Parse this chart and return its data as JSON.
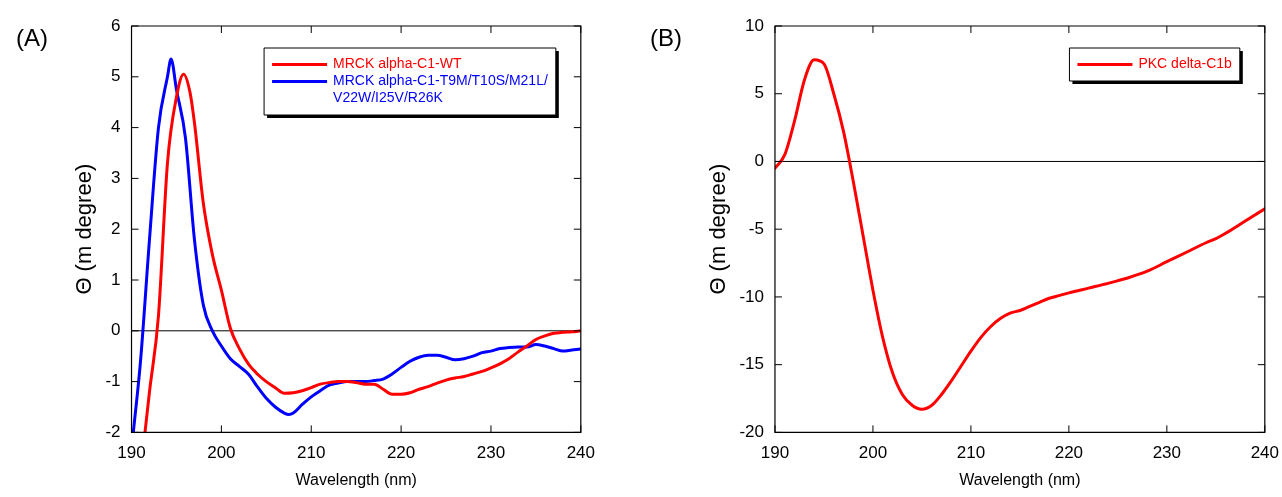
{
  "chart_data": [
    {
      "type": "line",
      "title": "(A)",
      "xlabel": "Wavelength (nm)",
      "ylabel": "Θ (m degree)",
      "xlim": [
        190,
        240
      ],
      "ylim": [
        -2,
        6
      ],
      "xticks": [
        190,
        200,
        210,
        220,
        230,
        240
      ],
      "yticks": [
        -2,
        -1,
        0,
        1,
        2,
        3,
        4,
        5,
        6
      ],
      "grid": false,
      "legend": "top right",
      "line_style": "solid",
      "ref_lines": [
        {
          "axis": "y",
          "value": 0,
          "color": "#000000"
        }
      ],
      "series": [
        {
          "name": "MRCK alpha-C1-WT",
          "color": "#ff0000",
          "x": [
            191.5,
            192,
            193,
            194,
            195,
            195.8,
            196.5,
            197,
            198,
            199,
            200,
            201,
            202,
            203,
            204,
            205,
            206,
            207,
            208,
            209,
            210,
            211,
            212,
            213,
            214,
            215,
            216,
            217,
            218,
            219,
            220,
            221,
            222,
            223,
            224,
            225,
            226,
            227,
            228,
            229,
            230,
            231,
            232,
            233,
            234,
            235,
            236,
            237,
            238,
            239,
            240
          ],
          "values": [
            -2,
            -1.2,
            0.3,
            3.3,
            4.6,
            5.05,
            4.7,
            4.1,
            2.5,
            1.5,
            0.8,
            0.05,
            -0.35,
            -0.65,
            -0.85,
            -1,
            -1.12,
            -1.23,
            -1.22,
            -1.18,
            -1.12,
            -1.05,
            -1.02,
            -1,
            -1,
            -1.02,
            -1.05,
            -1.05,
            -1.15,
            -1.25,
            -1.25,
            -1.22,
            -1.15,
            -1.1,
            -1.03,
            -0.97,
            -0.93,
            -0.9,
            -0.85,
            -0.8,
            -0.73,
            -0.65,
            -0.55,
            -0.42,
            -0.3,
            -0.17,
            -0.1,
            -0.05,
            -0.03,
            -0.02,
            0
          ]
        },
        {
          "name": "MRCK alpha-C1-T9M/T10S/M21L/V22W/I25V/R26K",
          "color": "#0000ff",
          "x": [
            190.2,
            191,
            192,
            193,
            194,
            194.4,
            195,
            196,
            197,
            198,
            199,
            200,
            201,
            202,
            203,
            204,
            205,
            206,
            207,
            207.5,
            208,
            209,
            210,
            211,
            212,
            213,
            214,
            215,
            216,
            217,
            218,
            219,
            220,
            221,
            222,
            223,
            224,
            225,
            226,
            227,
            228,
            229,
            230,
            231,
            232,
            233,
            234,
            235,
            236,
            237,
            238,
            239,
            240
          ],
          "values": [
            -2,
            -0.6,
            1.8,
            4,
            5,
            5.35,
            4.75,
            3.8,
            1.8,
            0.5,
            0,
            -0.3,
            -0.55,
            -0.7,
            -0.85,
            -1.1,
            -1.33,
            -1.5,
            -1.62,
            -1.65,
            -1.62,
            -1.45,
            -1.3,
            -1.18,
            -1.07,
            -1.03,
            -1,
            -1,
            -1,
            -0.98,
            -0.95,
            -0.85,
            -0.72,
            -0.6,
            -0.52,
            -0.48,
            -0.48,
            -0.52,
            -0.57,
            -0.55,
            -0.5,
            -0.43,
            -0.4,
            -0.35,
            -0.33,
            -0.32,
            -0.32,
            -0.27,
            -0.3,
            -0.35,
            -0.4,
            -0.38,
            -0.36
          ]
        }
      ]
    },
    {
      "type": "line",
      "title": "(B)",
      "xlabel": "Wavelength (nm)",
      "ylabel": "Θ (m degree)",
      "xlim": [
        190,
        240
      ],
      "ylim": [
        -20,
        10
      ],
      "xticks": [
        190,
        200,
        210,
        220,
        230,
        240
      ],
      "yticks": [
        -20,
        -15,
        -10,
        -5,
        0,
        5,
        10
      ],
      "grid": false,
      "legend": "top right",
      "line_style": "solid",
      "ref_lines": [
        {
          "axis": "y",
          "value": 0,
          "color": "#000000"
        }
      ],
      "series": [
        {
          "name": "PKC delta-C1b",
          "color": "#ff0000",
          "x": [
            190,
            191,
            192,
            193,
            194,
            195,
            196,
            197,
            198,
            199,
            200,
            201,
            202,
            203,
            204,
            205,
            206,
            207,
            208,
            209,
            210,
            211,
            212,
            213,
            214,
            215,
            216,
            217,
            218,
            219,
            220,
            222,
            224,
            225,
            226,
            228,
            230,
            232,
            234,
            235,
            236,
            238,
            240
          ],
          "values": [
            -0.5,
            0.5,
            3,
            6,
            7.5,
            7.2,
            5,
            2.2,
            -1.5,
            -5.5,
            -9.5,
            -13,
            -15.6,
            -17.2,
            -18,
            -18.3,
            -18,
            -17.2,
            -16.2,
            -15.1,
            -14,
            -13,
            -12.2,
            -11.6,
            -11.2,
            -11,
            -10.7,
            -10.4,
            -10.1,
            -9.9,
            -9.7,
            -9.35,
            -9,
            -8.8,
            -8.6,
            -8.1,
            -7.4,
            -6.7,
            -6,
            -5.7,
            -5.3,
            -4.4,
            -3.5
          ]
        }
      ]
    }
  ]
}
